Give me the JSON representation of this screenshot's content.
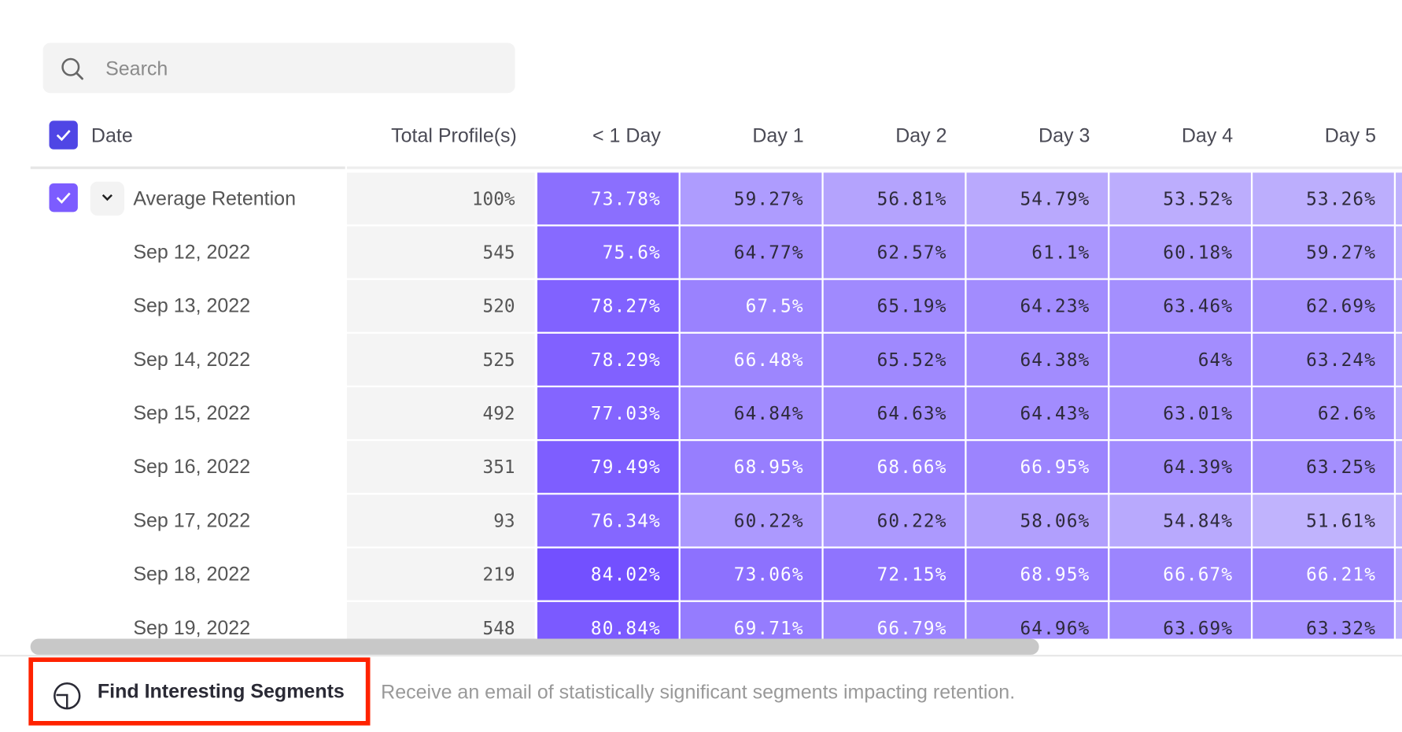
{
  "search": {
    "placeholder": "Search",
    "value": ""
  },
  "table": {
    "headers": {
      "date": "Date",
      "total": "Total Profile(s)",
      "days": [
        "< 1 Day",
        "Day 1",
        "Day 2",
        "Day 3",
        "Day 4",
        "Day 5"
      ]
    },
    "average": {
      "label": "Average Retention",
      "total": "100%",
      "values": [
        "73.78%",
        "59.27%",
        "56.81%",
        "54.79%",
        "53.52%",
        "53.26%"
      ]
    },
    "rows": [
      {
        "date": "Sep 12, 2022",
        "total": "545",
        "values": [
          "75.6%",
          "64.77%",
          "62.57%",
          "61.1%",
          "60.18%",
          "59.27%"
        ]
      },
      {
        "date": "Sep 13, 2022",
        "total": "520",
        "values": [
          "78.27%",
          "67.5%",
          "65.19%",
          "64.23%",
          "63.46%",
          "62.69%"
        ]
      },
      {
        "date": "Sep 14, 2022",
        "total": "525",
        "values": [
          "78.29%",
          "66.48%",
          "65.52%",
          "64.38%",
          "64%",
          "63.24%"
        ]
      },
      {
        "date": "Sep 15, 2022",
        "total": "492",
        "values": [
          "77.03%",
          "64.84%",
          "64.63%",
          "64.43%",
          "63.01%",
          "62.6%"
        ]
      },
      {
        "date": "Sep 16, 2022",
        "total": "351",
        "values": [
          "79.49%",
          "68.95%",
          "68.66%",
          "66.95%",
          "64.39%",
          "63.25%"
        ]
      },
      {
        "date": "Sep 17, 2022",
        "total": "93",
        "values": [
          "76.34%",
          "60.22%",
          "60.22%",
          "58.06%",
          "54.84%",
          "51.61%"
        ]
      },
      {
        "date": "Sep 18, 2022",
        "total": "219",
        "values": [
          "84.02%",
          "73.06%",
          "72.15%",
          "68.95%",
          "66.67%",
          "66.21%"
        ]
      },
      {
        "date": "Sep 19, 2022",
        "total": "548",
        "values": [
          "80.84%",
          "69.71%",
          "66.79%",
          "64.96%",
          "63.69%",
          "63.32%"
        ]
      }
    ]
  },
  "footer": {
    "button_label": "Find Interesting Segments",
    "description": "Receive an email of statistically significant segments impacting retention."
  },
  "colors": {
    "checkbox": "#4f46e5",
    "checkbox_light": "#7c5cff",
    "heat_low": "#c4b8fd",
    "heat_high": "#7350ff",
    "highlight": "#ff2200"
  }
}
